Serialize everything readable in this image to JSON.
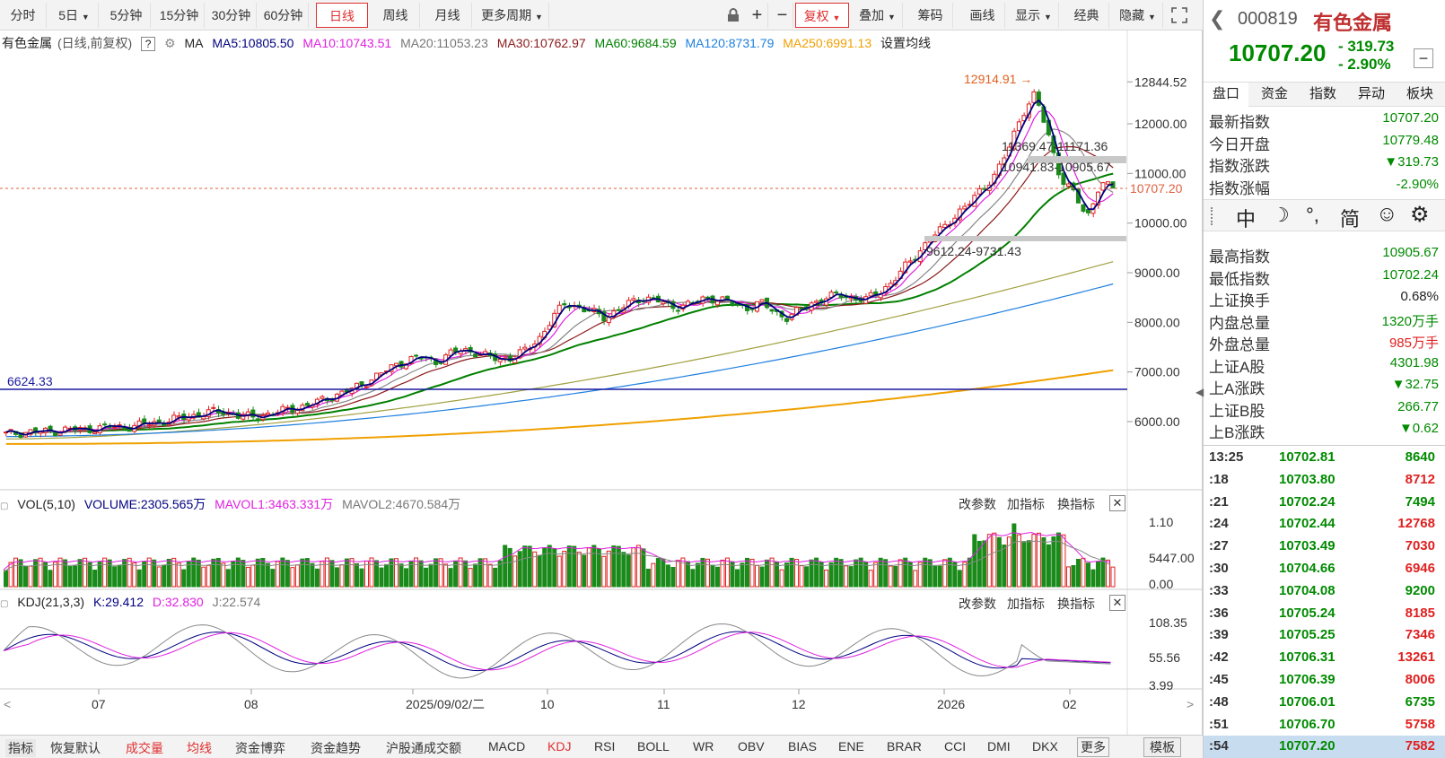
{
  "toolbar": {
    "periods": [
      "分时",
      "5日",
      "5分钟",
      "15分钟",
      "30分钟",
      "60分钟",
      "日线",
      "周线",
      "月线",
      "更多周期"
    ],
    "actions": [
      "复权",
      "叠加",
      "筹码",
      "画线",
      "显示",
      "经典",
      "隐藏"
    ]
  },
  "legend": {
    "name": "有色金属",
    "mode": "(日线,前复权)",
    "ma_label": "MA",
    "ma5": "MA5:10805.50",
    "ma10": "MA10:10743.51",
    "ma20": "MA20:11053.23",
    "ma30": "MA30:10762.97",
    "ma60": "MA60:9684.59",
    "ma120": "MA120:8731.79",
    "ma250": "MA250:6991.13",
    "settings": "设置均线"
  },
  "chart_data": {
    "type": "candlestick",
    "y_ticks": [
      "12844.52",
      "12000.00",
      "11000.00",
      "10000.00",
      "9000.00",
      "8000.00",
      "7000.00",
      "6000.00"
    ],
    "x_ticks": [
      "07",
      "08",
      "2025/09/02/二",
      "10",
      "11",
      "12",
      "2026",
      "02"
    ],
    "annotations": [
      "12914.91",
      "11369.47-11171.36",
      "10941.83-10905.67",
      "9612.24-9731.43",
      "6624.33"
    ],
    "current_price_label": "10707.20",
    "closes": [
      5750,
      5770,
      5800,
      5790,
      5820,
      5850,
      5830,
      5870,
      5900,
      5880,
      5920,
      5960,
      5990,
      6050,
      6100,
      6150,
      6200,
      6180,
      6120,
      6080,
      6150,
      6200,
      6260,
      6320,
      6400,
      6500,
      6600,
      6700,
      6850,
      7000,
      7150,
      7250,
      7300,
      7200,
      7350,
      7450,
      7400,
      7300,
      7250,
      7300,
      7450,
      7700,
      8100,
      8400,
      8300,
      8200,
      8100,
      8250,
      8400,
      8500,
      8450,
      8300,
      8350,
      8400,
      8500,
      8450,
      8350,
      8300,
      8400,
      8200,
      8100,
      8250,
      8400,
      8500,
      8550,
      8500,
      8450,
      8600,
      8800,
      9100,
      9400,
      9700,
      9900,
      10200,
      10400,
      10700,
      11000,
      11500,
      12200,
      12600,
      11800,
      10900,
      10600,
      10100,
      10800,
      10707
    ]
  },
  "vol": {
    "label": "VOL(5,10)",
    "volume": "VOLUME:2305.565万",
    "mavol1": "MAVOL1:3463.331万",
    "mavol2": "MAVOL2:4670.584万",
    "y_ticks": [
      "1.10",
      "5447.00",
      "0.00"
    ]
  },
  "kdj": {
    "label": "KDJ(21,3,3)",
    "k": "K:29.412",
    "d": "D:32.830",
    "j": "J:22.574",
    "y_ticks": [
      "108.35",
      "55.56",
      "3.99"
    ]
  },
  "panel_buttons": {
    "params": "改参数",
    "add": "加指标",
    "swap": "换指标"
  },
  "indicators": [
    "指标",
    "恢复默认",
    "成交量",
    "均线",
    "资金博弈",
    "资金趋势",
    "沪股通成交额",
    "MACD",
    "KDJ",
    "RSI",
    "BOLL",
    "WR",
    "OBV",
    "BIAS",
    "ENE",
    "BRAR",
    "CCI",
    "DMI",
    "DKX",
    "更多",
    "模板"
  ],
  "quote": {
    "code": "000819",
    "name": "有色金属",
    "price": "10707.20",
    "change": "- 319.73",
    "pct": "- 2.90%"
  },
  "tabs": [
    "盘口",
    "资金",
    "指数",
    "异动",
    "板块"
  ],
  "stats": [
    {
      "k": "最新指数",
      "v": "10707.20",
      "c": "green"
    },
    {
      "k": "今日开盘",
      "v": "10779.48",
      "c": "green"
    },
    {
      "k": "指数涨跌",
      "v": "▼319.73",
      "c": "green"
    },
    {
      "k": "指数涨幅",
      "v": "-2.90%",
      "c": "green"
    }
  ],
  "ime": [
    "中",
    "☽",
    "°,",
    "简",
    "☺",
    "⚙"
  ],
  "stats2": [
    {
      "k": "最高指数",
      "v": "10905.67",
      "c": "green"
    },
    {
      "k": "最低指数",
      "v": "10702.24",
      "c": "green"
    },
    {
      "k": "上证换手",
      "v": "0.68%",
      "c": "dark"
    },
    {
      "k": "内盘总量",
      "v": "1320万手",
      "c": "green"
    },
    {
      "k": "外盘总量",
      "v": "985万手",
      "c": "red"
    },
    {
      "k": "上证A股",
      "v": "4301.98",
      "c": "green"
    },
    {
      "k": "上A涨跌",
      "v": "▼32.75",
      "c": "green"
    },
    {
      "k": "上证B股",
      "v": "266.77",
      "c": "green"
    },
    {
      "k": "上B涨跌",
      "v": "▼0.62",
      "c": "green"
    }
  ],
  "ticks": [
    {
      "t": "13:25",
      "p": "10702.81",
      "q": "8640",
      "c": "green"
    },
    {
      "t": ":18",
      "p": "10703.80",
      "q": "8712",
      "c": "red"
    },
    {
      "t": ":21",
      "p": "10702.24",
      "q": "7494",
      "c": "green"
    },
    {
      "t": ":24",
      "p": "10702.44",
      "q": "12768",
      "c": "red"
    },
    {
      "t": ":27",
      "p": "10703.49",
      "q": "7030",
      "c": "red"
    },
    {
      "t": ":30",
      "p": "10704.66",
      "q": "6946",
      "c": "red"
    },
    {
      "t": ":33",
      "p": "10704.08",
      "q": "9200",
      "c": "green"
    },
    {
      "t": ":36",
      "p": "10705.24",
      "q": "8185",
      "c": "red"
    },
    {
      "t": ":39",
      "p": "10705.25",
      "q": "7346",
      "c": "red"
    },
    {
      "t": ":42",
      "p": "10706.31",
      "q": "13261",
      "c": "red"
    },
    {
      "t": ":45",
      "p": "10706.39",
      "q": "8006",
      "c": "red"
    },
    {
      "t": ":48",
      "p": "10706.01",
      "q": "6735",
      "c": "green"
    },
    {
      "t": ":51",
      "p": "10706.70",
      "q": "5758",
      "c": "red"
    },
    {
      "t": ":54",
      "p": "10707.20",
      "q": "7582",
      "c": "red"
    }
  ],
  "colors": {
    "up": "#e02020",
    "down": "#1a8a1a",
    "ma5": "#000080",
    "ma10": "#e020e0",
    "ma20": "#888888",
    "ma30": "#8b1a1a",
    "ma60": "#008000",
    "ma120": "#1e7fe0",
    "ma250": "#f0a000"
  }
}
